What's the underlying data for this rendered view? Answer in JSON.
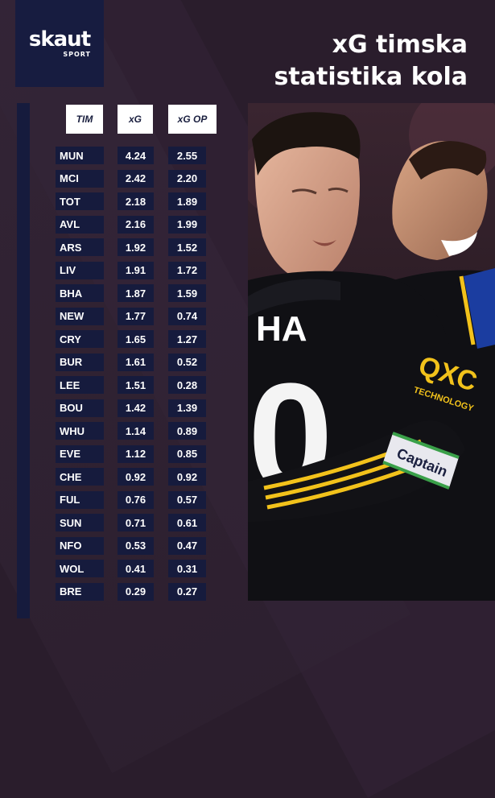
{
  "brand": {
    "name": "skaut",
    "sub": "SPORT"
  },
  "title": {
    "line1": "xG timska",
    "line2": "statistika kola"
  },
  "table": {
    "headers": {
      "team": "TIM",
      "xg": "xG",
      "xg_op": "xG OP"
    },
    "rows": [
      {
        "team": "MUN",
        "xg": "4.24",
        "xg_op": "2.55"
      },
      {
        "team": "MCI",
        "xg": "2.42",
        "xg_op": "2.20"
      },
      {
        "team": "TOT",
        "xg": "2.18",
        "xg_op": "1.89"
      },
      {
        "team": "AVL",
        "xg": "2.16",
        "xg_op": "1.99"
      },
      {
        "team": "ARS",
        "xg": "1.92",
        "xg_op": "1.52"
      },
      {
        "team": "LIV",
        "xg": "1.91",
        "xg_op": "1.72"
      },
      {
        "team": "BHA",
        "xg": "1.87",
        "xg_op": "1.59"
      },
      {
        "team": "NEW",
        "xg": "1.77",
        "xg_op": "0.74"
      },
      {
        "team": "CRY",
        "xg": "1.65",
        "xg_op": "1.27"
      },
      {
        "team": "BUR",
        "xg": "1.61",
        "xg_op": "0.52"
      },
      {
        "team": "LEE",
        "xg": "1.51",
        "xg_op": "0.28"
      },
      {
        "team": "BOU",
        "xg": "1.42",
        "xg_op": "1.39"
      },
      {
        "team": "WHU",
        "xg": "1.14",
        "xg_op": "0.89"
      },
      {
        "team": "EVE",
        "xg": "1.12",
        "xg_op": "0.85"
      },
      {
        "team": "CHE",
        "xg": "0.92",
        "xg_op": "0.92"
      },
      {
        "team": "FUL",
        "xg": "0.76",
        "xg_op": "0.57"
      },
      {
        "team": "SUN",
        "xg": "0.71",
        "xg_op": "0.61"
      },
      {
        "team": "NFO",
        "xg": "0.53",
        "xg_op": "0.47"
      },
      {
        "team": "WOL",
        "xg": "0.41",
        "xg_op": "0.31"
      },
      {
        "team": "BRE",
        "xg": "0.29",
        "xg_op": "0.27"
      }
    ]
  },
  "photo": {
    "shirt_text_1": "HA",
    "shirt_text_2": "0",
    "sponsor_1": "QXC",
    "sponsor_2": "TECHNOLOGY",
    "armband": "Captain"
  },
  "colors": {
    "background": "#2a1d2c",
    "panel": "#161b3d",
    "header_fill": "#ffffff",
    "header_text": "#1a1f3f",
    "kit_black": "#101014",
    "kit_yellow": "#f2c21b"
  }
}
